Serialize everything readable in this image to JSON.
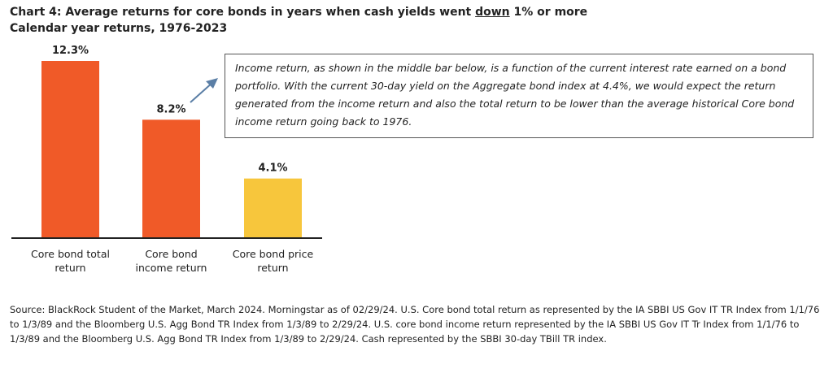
{
  "header": {
    "title_prefix": "Chart 4: Average returns for core bonds in years when cash yields went ",
    "title_emphasis": "down",
    "title_suffix": " 1% or more",
    "subtitle": "Calendar year returns, 1976-2023"
  },
  "callout": {
    "text": "Income return, as shown in the middle bar below, is a function of the current interest rate earned on a bond portfolio. With the current 30-day yield on the Aggregate bond index at 4.4%, we would expect the return generated from the income return and also the total return to be lower than the average historical Core bond income return going back to 1976."
  },
  "source": {
    "text": "Source: BlackRock Student of the Market, March 2024. Morningstar as of 02/29/24. U.S. Core bond total return as represented by the IA SBBI US Gov IT TR Index from 1/1/76 to 1/3/89 and the Bloomberg U.S. Agg Bond TR Index from 1/3/89 to 2/29/24. U.S. core bond income return represented by the IA SBBI US Gov IT Tr Index from 1/1/76 to 1/3/89 and the Bloomberg U.S. Agg Bond TR Index from 1/3/89 to 2/29/24. Cash represented by the SBBI 30-day TBill TR index."
  },
  "colors": {
    "total_bar": "#f05a28",
    "income_bar": "#f05a28",
    "price_bar": "#f7c63c",
    "axis": "#222222",
    "arrow": "#5b7fa6"
  },
  "chart_data": {
    "type": "bar",
    "title": "Chart 4: Average returns for core bonds in years when cash yields went down 1% or more",
    "subtitle": "Calendar year returns, 1976-2023",
    "categories": [
      "Core bond total return",
      "Core bond income return",
      "Core bond price return"
    ],
    "category_lines": [
      [
        "Core bond total",
        "return"
      ],
      [
        "Core bond",
        "income return"
      ],
      [
        "Core bond price",
        "return"
      ]
    ],
    "values": [
      12.3,
      8.2,
      4.1
    ],
    "data_labels": [
      "12.3%",
      "8.2%",
      "4.1%"
    ],
    "bar_colors": [
      "#f05a28",
      "#f05a28",
      "#f7c63c"
    ],
    "ylim": [
      0,
      12.3
    ],
    "grid": false,
    "legend": "none"
  }
}
